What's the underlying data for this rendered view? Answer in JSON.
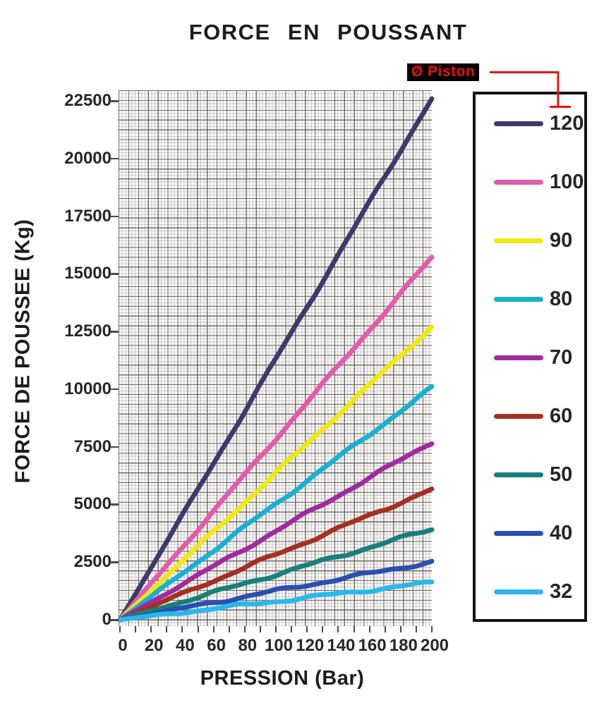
{
  "title": "FORCE EN POUSSANT",
  "annotation": {
    "piston_label": "Ø Piston"
  },
  "colors": {
    "annotation_red": "#ee1010",
    "title_text": "#1c1c1c",
    "tick_text": "#262626",
    "legend_border": "#141414",
    "grid_major": "#68635f",
    "grid_minor": "#8c8782"
  },
  "chart_data": {
    "type": "line",
    "title": "FORCE EN POUSSANT",
    "xlabel": "PRESSION (Bar)",
    "ylabel": "FORCE DE POUSSEE (Kg)",
    "x": [
      0,
      20,
      40,
      60,
      80,
      100,
      120,
      140,
      160,
      180,
      200
    ],
    "x_ticks": [
      0,
      20,
      40,
      60,
      80,
      100,
      120,
      140,
      160,
      180,
      200
    ],
    "y_ticks": [
      0,
      2500,
      5000,
      7500,
      10000,
      12500,
      15000,
      17500,
      20000,
      22500
    ],
    "xlim": [
      0,
      200
    ],
    "ylim": [
      0,
      23000
    ],
    "grid": "graph-paper",
    "legend_title": "Ø Piston",
    "legend_position": "right",
    "series": [
      {
        "name": "120",
        "color": "#3c3a6d",
        "values": [
          0,
          2262,
          4524,
          6786,
          9048,
          11310,
          13572,
          15834,
          18096,
          20358,
          22620
        ]
      },
      {
        "name": "100",
        "color": "#e45aac",
        "values": [
          0,
          1571,
          3142,
          4712,
          6283,
          7854,
          9425,
          10996,
          12566,
          14137,
          15708
        ]
      },
      {
        "name": "90",
        "color": "#f0e811",
        "values": [
          0,
          1272,
          2545,
          3817,
          5089,
          6362,
          7634,
          8906,
          10179,
          11451,
          12723
        ]
      },
      {
        "name": "80",
        "color": "#17b1d4",
        "values": [
          0,
          1005,
          2011,
          3016,
          4021,
          5027,
          6032,
          7037,
          8042,
          9048,
          10053
        ]
      },
      {
        "name": "70",
        "color": "#a02ba0",
        "values": [
          0,
          770,
          1539,
          2309,
          3079,
          3848,
          4618,
          5388,
          6158,
          6927,
          7697
        ]
      },
      {
        "name": "60",
        "color": "#a5301f",
        "values": [
          0,
          565,
          1131,
          1696,
          2262,
          2827,
          3393,
          3958,
          4524,
          5089,
          5655
        ]
      },
      {
        "name": "50",
        "color": "#16807a",
        "values": [
          0,
          393,
          785,
          1178,
          1571,
          1963,
          2356,
          2749,
          3142,
          3534,
          3927
        ]
      },
      {
        "name": "40",
        "color": "#2a4fb0",
        "values": [
          0,
          251,
          503,
          754,
          1005,
          1257,
          1508,
          1760,
          2011,
          2262,
          2513
        ]
      },
      {
        "name": "32",
        "color": "#29b8ec",
        "values": [
          0,
          161,
          322,
          483,
          643,
          804,
          965,
          1126,
          1287,
          1447,
          1608
        ]
      }
    ]
  }
}
